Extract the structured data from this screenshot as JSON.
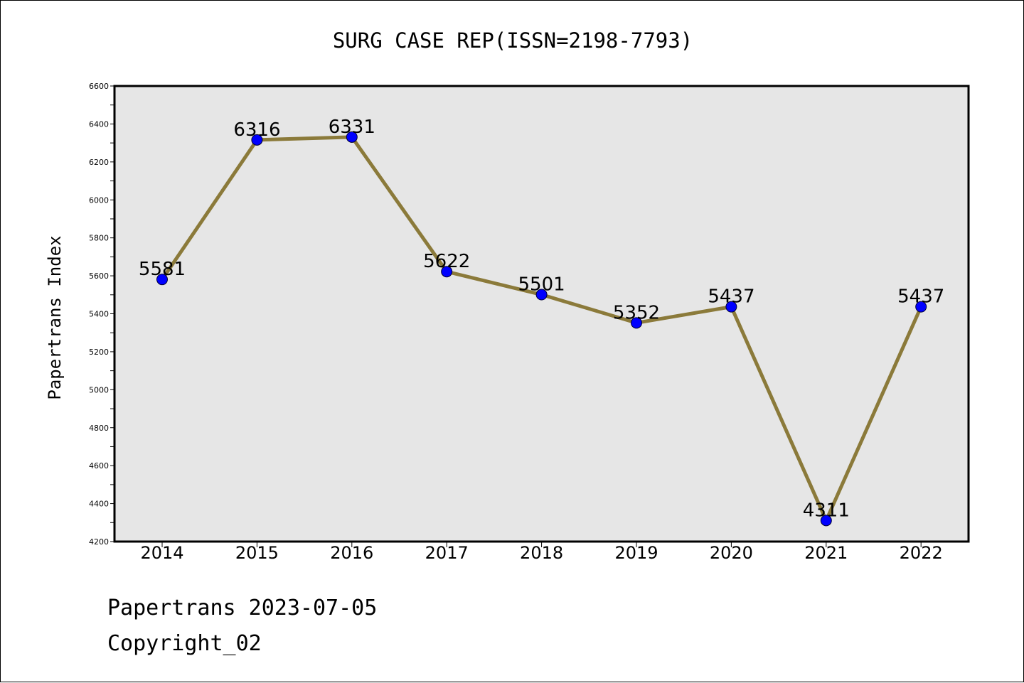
{
  "chart_data": {
    "type": "line",
    "title": "SURG CASE REP(ISSN=2198-7793)",
    "xlabel": "",
    "ylabel": "Papertrans Index",
    "categories": [
      "2014",
      "2015",
      "2016",
      "2017",
      "2018",
      "2019",
      "2020",
      "2021",
      "2022"
    ],
    "series": [
      {
        "values": [
          5581,
          6316,
          6331,
          5622,
          5501,
          5352,
          5437,
          4311,
          5437
        ],
        "line_color": "#8b7a3a",
        "marker_color": "#0000ff"
      }
    ],
    "data_labels": [
      "5581",
      "6316",
      "6331",
      "5622",
      "5501",
      "5352",
      "5437",
      "4311",
      "5437"
    ],
    "ylim": [
      4200,
      6600
    ],
    "yticks": [
      4200,
      4400,
      4600,
      4800,
      5000,
      5200,
      5400,
      5600,
      5800,
      6000,
      6200,
      6400,
      6600
    ],
    "grid": false,
    "plot_background": "#e6e6e6",
    "legend": "none"
  },
  "footer": {
    "line1": "Papertrans 2023-07-05",
    "line2": "Copyright_02"
  }
}
